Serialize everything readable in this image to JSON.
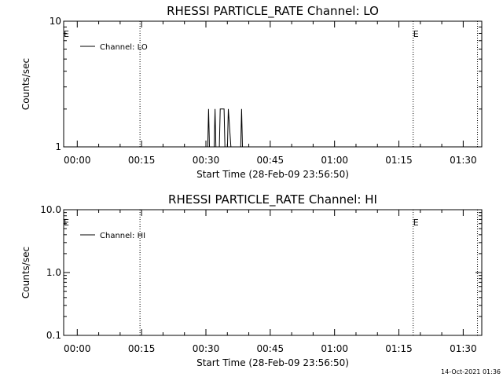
{
  "chart_data": [
    {
      "type": "line",
      "title": "RHESSI PARTICLE_RATE Channel: LO",
      "xlabel": "Start Time (28-Feb-09 23:56:50)",
      "ylabel": "Counts/sec",
      "yscale": "log",
      "ylim": [
        1,
        10
      ],
      "yticks": [
        {
          "v": 1,
          "label": "1"
        },
        {
          "v": 10,
          "label": "10"
        }
      ],
      "xlim": [
        0,
        97.5
      ],
      "xticks": [
        {
          "v": 3.17,
          "label": "00:00"
        },
        {
          "v": 18.17,
          "label": "00:15"
        },
        {
          "v": 33.17,
          "label": "00:30"
        },
        {
          "v": 48.17,
          "label": "00:45"
        },
        {
          "v": 63.17,
          "label": "01:00"
        },
        {
          "v": 78.17,
          "label": "01:15"
        },
        {
          "v": 93.17,
          "label": "01:30"
        }
      ],
      "markers": [
        {
          "v": 0,
          "label": "E"
        },
        {
          "v": 81.5,
          "label": "E"
        }
      ],
      "vlines": [
        17.8,
        81.5,
        96.5
      ],
      "legend": "top-left",
      "grid": false,
      "series": [
        {
          "name": "Channel: LO",
          "x": [
            33.6,
            33.8,
            34.0,
            35.1,
            35.3,
            35.5,
            36.3,
            36.5,
            37.4,
            37.6,
            38.2,
            38.4,
            39.0,
            39.2,
            41.3,
            41.5,
            41.7
          ],
          "y": [
            1,
            2,
            1,
            1,
            2,
            1,
            1,
            2,
            2,
            1,
            1,
            2,
            1,
            1,
            1,
            2,
            1
          ]
        }
      ]
    },
    {
      "type": "line",
      "title": "RHESSI PARTICLE_RATE Channel: HI",
      "xlabel": "Start Time (28-Feb-09 23:56:50)",
      "ylabel": "Counts/sec",
      "yscale": "log",
      "ylim": [
        0.1,
        10
      ],
      "yticks": [
        {
          "v": 0.1,
          "label": "0.1"
        },
        {
          "v": 1,
          "label": "1.0"
        },
        {
          "v": 10,
          "label": "10.0"
        }
      ],
      "xlim": [
        0,
        97.5
      ],
      "xticks": [
        {
          "v": 3.17,
          "label": "00:00"
        },
        {
          "v": 18.17,
          "label": "00:15"
        },
        {
          "v": 33.17,
          "label": "00:30"
        },
        {
          "v": 48.17,
          "label": "00:45"
        },
        {
          "v": 63.17,
          "label": "01:00"
        },
        {
          "v": 78.17,
          "label": "01:15"
        },
        {
          "v": 93.17,
          "label": "01:30"
        }
      ],
      "markers": [
        {
          "v": 0,
          "label": "E"
        },
        {
          "v": 81.5,
          "label": "E"
        }
      ],
      "vlines": [
        17.8,
        81.5,
        96.5
      ],
      "legend": "top-left",
      "grid": false,
      "series": [
        {
          "name": "Channel: HI",
          "x": [],
          "y": []
        }
      ]
    }
  ],
  "footer": {
    "timestamp": "14-Oct-2021 01:36"
  }
}
